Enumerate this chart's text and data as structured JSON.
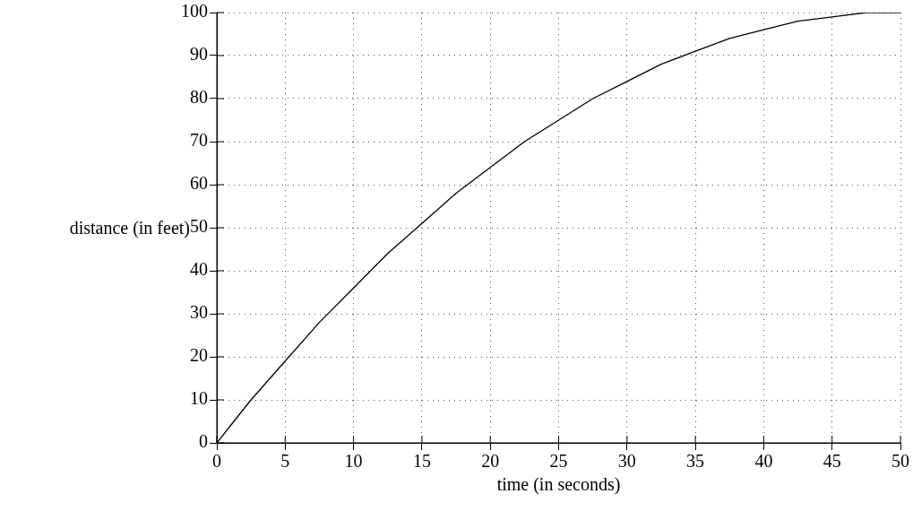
{
  "chart_data": {
    "type": "line",
    "xlabel": "time (in seconds)",
    "ylabel": "distance (in feet)",
    "x": [
      0,
      2.5,
      5,
      7.5,
      10,
      12.5,
      15,
      17.5,
      20,
      22.5,
      25,
      27.5,
      30,
      32.5,
      35,
      37.5,
      40,
      42.5,
      45,
      47.5,
      50
    ],
    "series": [
      {
        "color": "#000000",
        "values": [
          0,
          10,
          19,
          28,
          36,
          44,
          51,
          58,
          64,
          70,
          75,
          80,
          84,
          88,
          91,
          94,
          96,
          98,
          99,
          100,
          100
        ]
      }
    ],
    "xlim": [
      0,
      50
    ],
    "xticks": [
      0,
      5,
      10,
      15,
      20,
      25,
      30,
      35,
      40,
      45,
      50
    ],
    "ylim": [
      0,
      100
    ],
    "yticks": [
      0,
      10,
      20,
      30,
      40,
      50,
      60,
      70,
      80,
      90,
      100
    ],
    "grid": true,
    "legend": false,
    "marker": "none",
    "line_style": "solid"
  }
}
